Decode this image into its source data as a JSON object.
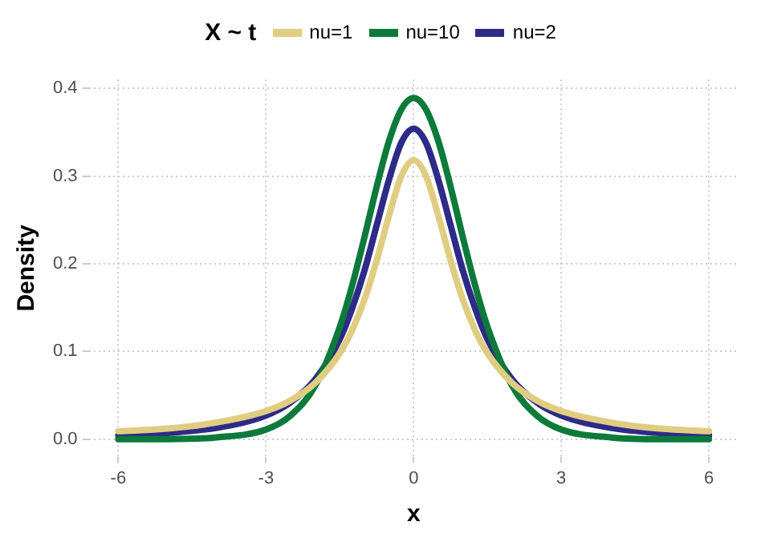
{
  "chart_data": {
    "type": "line",
    "xlabel": "x",
    "ylabel": "Density",
    "legend_title": "X ~ t",
    "legend": "top",
    "x": [
      -6,
      -5,
      -4,
      -3,
      -2.5,
      -2,
      -1.5,
      -1.25,
      -1,
      -0.75,
      -0.5,
      -0.25,
      0,
      0.25,
      0.5,
      0.75,
      1,
      1.25,
      1.5,
      2,
      2.5,
      3,
      4,
      5,
      6
    ],
    "series": [
      {
        "name": "nu=1",
        "color": "#e0cd82",
        "values": [
          0.009,
          0.012,
          0.019,
          0.032,
          0.044,
          0.064,
          0.098,
          0.124,
          0.159,
          0.204,
          0.255,
          0.3,
          0.318,
          0.3,
          0.255,
          0.204,
          0.159,
          0.124,
          0.098,
          0.064,
          0.044,
          0.032,
          0.019,
          0.012,
          0.009
        ]
      },
      {
        "name": "nu=10",
        "color": "#0b7a3a",
        "values": [
          0.0,
          0.0,
          0.002,
          0.011,
          0.027,
          0.061,
          0.128,
          0.175,
          0.23,
          0.288,
          0.34,
          0.376,
          0.389,
          0.376,
          0.34,
          0.288,
          0.23,
          0.175,
          0.128,
          0.061,
          0.027,
          0.011,
          0.002,
          0.0,
          0.0
        ]
      },
      {
        "name": "nu=2",
        "color": "#2e2a87",
        "values": [
          0.004,
          0.007,
          0.013,
          0.027,
          0.042,
          0.068,
          0.114,
          0.149,
          0.192,
          0.244,
          0.296,
          0.338,
          0.354,
          0.338,
          0.296,
          0.244,
          0.192,
          0.149,
          0.114,
          0.068,
          0.042,
          0.027,
          0.013,
          0.007,
          0.004
        ]
      }
    ],
    "xlim": [
      -6.6,
      6.6
    ],
    "ylim": [
      -0.02,
      0.41
    ],
    "xticks": [
      -6,
      -3,
      0,
      3,
      6
    ],
    "yticks": [
      {
        "value": 0,
        "label": "0.0"
      },
      {
        "value": 0.1,
        "label": "0.1"
      },
      {
        "value": 0.2,
        "label": "0.2"
      },
      {
        "value": 0.3,
        "label": "0.3"
      },
      {
        "value": 0.4,
        "label": "0.4"
      }
    ],
    "grid": true,
    "marker": "none",
    "line_style": "solid"
  }
}
